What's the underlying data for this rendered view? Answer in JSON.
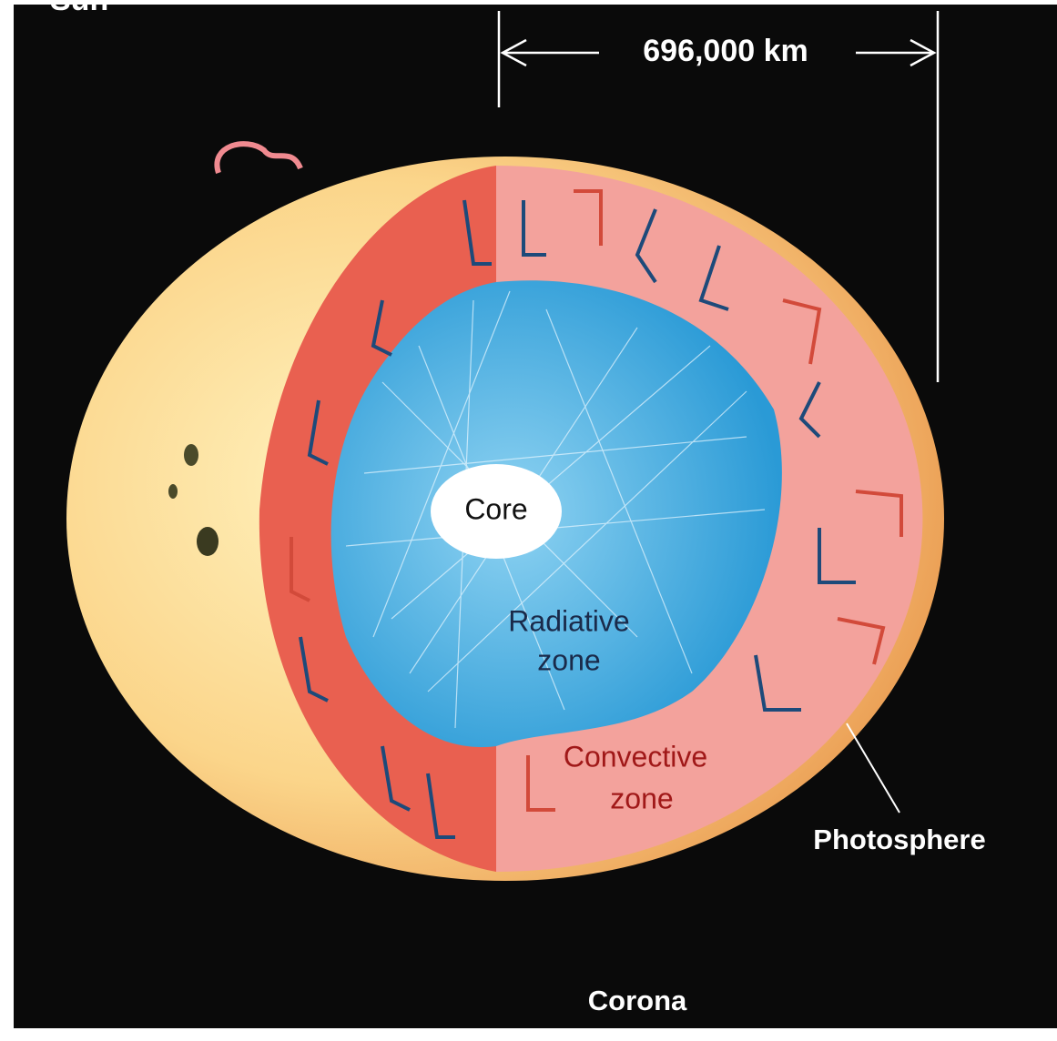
{
  "title": "Sun",
  "dimension": {
    "label": "696,000 km"
  },
  "layers": {
    "core": {
      "label": "Core"
    },
    "radiative": {
      "lines": [
        "Radiative",
        "zone"
      ]
    },
    "convective": {
      "lines": [
        "Convective",
        "zone"
      ]
    },
    "photosphere": {
      "label": "Photosphere"
    },
    "corona": {
      "label": "Corona"
    }
  }
}
